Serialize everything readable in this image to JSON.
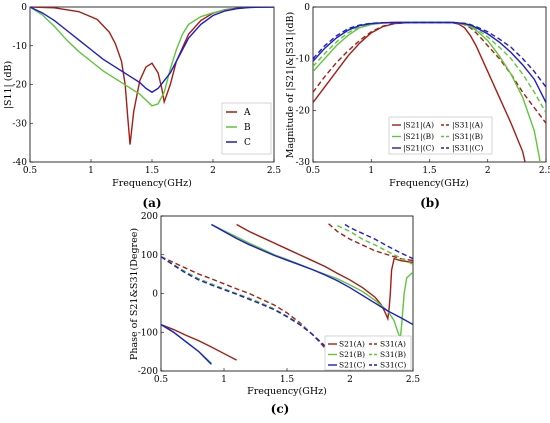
{
  "chart_data": [
    {
      "id": "a",
      "panel_label": "(a)",
      "type": "line",
      "xlabel": "Frequency(GHz)",
      "ylabel": "|S11| (dB)",
      "xlim": [
        0.5,
        2.5
      ],
      "ylim": [
        -40,
        0
      ],
      "xticks": [
        "0.5",
        "1",
        "1.5",
        "2",
        "2.5"
      ],
      "yticks": [
        "0",
        "-10",
        "-20",
        "-30",
        "-40"
      ],
      "grid": false,
      "legend": "center-right",
      "colors": {
        "A": "#a31e14",
        "B": "#5fc63a",
        "C": "#1c1ccf"
      },
      "series": [
        {
          "name": "A",
          "x": [
            0.5,
            0.7,
            0.9,
            1.05,
            1.15,
            1.2,
            1.25,
            1.28,
            1.3,
            1.32,
            1.35,
            1.4,
            1.45,
            1.5,
            1.55,
            1.58,
            1.6,
            1.65,
            1.7,
            1.8,
            1.9,
            2.0,
            2.1,
            2.2,
            2.3,
            2.5
          ],
          "y": [
            0,
            -0.2,
            -1.2,
            -3.2,
            -6.5,
            -9.5,
            -14,
            -20,
            -28,
            -35.5,
            -27,
            -19,
            -15.5,
            -14.5,
            -17,
            -21,
            -24.5,
            -20,
            -14,
            -7,
            -3.5,
            -1.6,
            -0.7,
            -0.3,
            -0.1,
            0
          ]
        },
        {
          "name": "B",
          "x": [
            0.5,
            0.6,
            0.7,
            0.8,
            0.9,
            1.0,
            1.1,
            1.2,
            1.3,
            1.4,
            1.45,
            1.5,
            1.55,
            1.6,
            1.65,
            1.7,
            1.75,
            1.8,
            1.9,
            2.0,
            2.1,
            2.2,
            2.3,
            2.5
          ],
          "y": [
            0,
            -2,
            -5,
            -8.5,
            -11.5,
            -14,
            -16.5,
            -18.5,
            -20.5,
            -22.5,
            -24,
            -25.5,
            -25,
            -22,
            -16,
            -11,
            -7,
            -4.5,
            -2.5,
            -1.5,
            -0.8,
            -0.4,
            -0.1,
            0
          ]
        },
        {
          "name": "C",
          "x": [
            0.5,
            0.6,
            0.7,
            0.8,
            0.9,
            1.0,
            1.1,
            1.2,
            1.3,
            1.4,
            1.45,
            1.5,
            1.55,
            1.6,
            1.65,
            1.7,
            1.8,
            1.9,
            2.0,
            2.1,
            2.2,
            2.3,
            2.5
          ],
          "y": [
            0,
            -1.5,
            -3.5,
            -6,
            -8.5,
            -11,
            -13.5,
            -15.5,
            -17.5,
            -19.5,
            -21,
            -22,
            -21,
            -19,
            -17,
            -14,
            -8,
            -4.5,
            -2.2,
            -1,
            -0.4,
            -0.1,
            0
          ]
        }
      ]
    },
    {
      "id": "b",
      "panel_label": "(b)",
      "type": "line",
      "xlabel": "Frequency(GHz)",
      "ylabel": "Magnitude of |S21|&|S31|(dB)",
      "xlim": [
        0.5,
        2.5
      ],
      "ylim": [
        -30,
        0
      ],
      "xticks": [
        "0.5",
        "1",
        "1.5",
        "2",
        "2.5"
      ],
      "yticks": [
        "0",
        "-10",
        "-20",
        "-30"
      ],
      "grid": false,
      "legend": "bottom-center",
      "colors": {
        "A": "#a31e14",
        "B": "#5fc63a",
        "C": "#1c1ccf"
      },
      "legend_entries": [
        "|S21|(A)",
        "|S31|(A)",
        "|S21|(B)",
        "|S31|(B)",
        "|S21|(C)",
        "|S31|(C)"
      ],
      "series": [
        {
          "name": "|S21|(A)",
          "dash": false,
          "color": "A",
          "x": [
            0.5,
            0.6,
            0.7,
            0.8,
            0.9,
            1.0,
            1.1,
            1.2,
            1.3,
            1.4,
            1.5,
            1.6,
            1.7,
            1.75,
            1.8,
            1.85,
            1.9,
            1.95,
            2.0,
            2.1,
            2.2,
            2.3,
            2.32
          ],
          "y": [
            -18.5,
            -15.5,
            -12.5,
            -9.5,
            -7,
            -5,
            -3.8,
            -3.2,
            -3.05,
            -3,
            -3,
            -3,
            -3.05,
            -3.3,
            -4,
            -5.5,
            -7.5,
            -10,
            -12.5,
            -17.5,
            -22.5,
            -28,
            -30
          ]
        },
        {
          "name": "|S31|(A)",
          "dash": true,
          "color": "A",
          "x": [
            0.5,
            0.6,
            0.7,
            0.8,
            0.9,
            1.0,
            1.1,
            1.2,
            1.3,
            1.4,
            1.5,
            1.6,
            1.7,
            1.75,
            1.8,
            1.85,
            1.9,
            1.95,
            2.0,
            2.1,
            2.2,
            2.3,
            2.4,
            2.5
          ],
          "y": [
            -16.5,
            -13.5,
            -10.8,
            -8.5,
            -6.5,
            -4.8,
            -3.7,
            -3.2,
            -3.05,
            -3,
            -3,
            -3,
            -3,
            -3.1,
            -3.4,
            -4,
            -5,
            -6.2,
            -7.5,
            -10,
            -13,
            -16.5,
            -19.5,
            -22.5
          ]
        },
        {
          "name": "|S21|(B)",
          "dash": false,
          "color": "B",
          "x": [
            0.5,
            0.6,
            0.7,
            0.8,
            0.9,
            1.0,
            1.1,
            1.2,
            1.3,
            1.4,
            1.5,
            1.6,
            1.7,
            1.8,
            1.85,
            1.9,
            2.0,
            2.1,
            2.2,
            2.3,
            2.4,
            2.45
          ],
          "y": [
            -12.5,
            -10,
            -7.5,
            -5.5,
            -4,
            -3.4,
            -3.1,
            -3,
            -3,
            -3,
            -3,
            -3,
            -3,
            -3.3,
            -3.8,
            -4.5,
            -6.5,
            -9.5,
            -13,
            -17.5,
            -24,
            -30
          ]
        },
        {
          "name": "|S31|(B)",
          "dash": true,
          "color": "B",
          "x": [
            0.5,
            0.6,
            0.7,
            0.8,
            0.9,
            1.0,
            1.1,
            1.2,
            1.3,
            1.4,
            1.5,
            1.6,
            1.7,
            1.8,
            1.85,
            1.9,
            2.0,
            2.1,
            2.2,
            2.3,
            2.4,
            2.5
          ],
          "y": [
            -11.5,
            -9,
            -6.8,
            -5,
            -3.8,
            -3.3,
            -3.1,
            -3,
            -3,
            -3,
            -3,
            -3,
            -3,
            -3.2,
            -3.6,
            -4.2,
            -5.8,
            -7.8,
            -10,
            -13,
            -16.5,
            -20.5
          ]
        },
        {
          "name": "|S21|(C)",
          "dash": false,
          "color": "C",
          "x": [
            0.5,
            0.6,
            0.7,
            0.8,
            0.9,
            1.0,
            1.1,
            1.2,
            1.3,
            1.4,
            1.5,
            1.6,
            1.7,
            1.8,
            1.85,
            1.9,
            2.0,
            2.1,
            2.2,
            2.3,
            2.4,
            2.5
          ],
          "y": [
            -10.5,
            -8,
            -6,
            -4.5,
            -3.6,
            -3.2,
            -3.05,
            -3,
            -3,
            -3,
            -3,
            -3,
            -3,
            -3.2,
            -3.5,
            -4,
            -5.2,
            -6.8,
            -8.8,
            -11.2,
            -14,
            -18.5
          ]
        },
        {
          "name": "|S31|(C)",
          "dash": true,
          "color": "C",
          "x": [
            0.5,
            0.6,
            0.7,
            0.8,
            0.9,
            1.0,
            1.1,
            1.2,
            1.3,
            1.4,
            1.5,
            1.6,
            1.7,
            1.8,
            1.85,
            1.9,
            2.0,
            2.1,
            2.2,
            2.3,
            2.4,
            2.5
          ],
          "y": [
            -10,
            -7.5,
            -5.6,
            -4.2,
            -3.5,
            -3.15,
            -3.05,
            -3,
            -3,
            -3,
            -3,
            -3,
            -3,
            -3.15,
            -3.4,
            -3.8,
            -4.8,
            -6.2,
            -7.8,
            -10,
            -12.5,
            -15.5
          ]
        }
      ]
    },
    {
      "id": "c",
      "panel_label": "(c)",
      "type": "line",
      "xlabel": "Frequency(GHz)",
      "ylabel": "Phase of S21&S31(Degree)",
      "xlim": [
        0.5,
        2.5
      ],
      "ylim": [
        -200,
        200
      ],
      "xticks": [
        "0.5",
        "1",
        "1.5",
        "2",
        "2.5"
      ],
      "yticks": [
        "200",
        "100",
        "0",
        "-100",
        "-200"
      ],
      "grid": false,
      "legend": "bottom-right",
      "colors": {
        "A": "#a31e14",
        "B": "#5fc63a",
        "C": "#1c1ccf"
      },
      "legend_entries": [
        "S21(A)",
        "S31(A)",
        "S21(B)",
        "S31(B)",
        "S21(C)",
        "S31(C)"
      ],
      "series": [
        {
          "name": "S21(A)",
          "dash": false,
          "color": "A",
          "x": [
            0.5,
            0.6,
            0.7,
            0.8,
            0.9,
            1.0,
            1.1,
            1.1001,
            1.2,
            1.3,
            1.4,
            1.5,
            1.6,
            1.7,
            1.8,
            1.9,
            2.0,
            2.1,
            2.2,
            2.25,
            2.28,
            2.3,
            2.31,
            2.32,
            2.33,
            2.35,
            2.4,
            2.5
          ],
          "y": [
            -80,
            -93,
            -108,
            -122,
            -138,
            -155,
            -172,
            178,
            160,
            145,
            130,
            115,
            100,
            85,
            70,
            52,
            35,
            15,
            -10,
            -30,
            -50,
            -65,
            -40,
            0,
            60,
            90,
            85,
            80
          ]
        },
        {
          "name": "S31(A)",
          "dash": true,
          "color": "A",
          "x": [
            0.5,
            0.6,
            0.7,
            0.8,
            0.9,
            1.0,
            1.1,
            1.2,
            1.3,
            1.4,
            1.5,
            1.6,
            1.7,
            1.8,
            1.83,
            1.8301,
            1.9,
            2.0,
            2.1,
            2.2,
            2.3,
            2.4,
            2.5
          ],
          "y": [
            95,
            80,
            65,
            50,
            38,
            25,
            12,
            0,
            -15,
            -30,
            -50,
            -75,
            -105,
            -140,
            -182,
            180,
            160,
            140,
            125,
            110,
            100,
            90,
            85
          ]
        },
        {
          "name": "S21(B)",
          "dash": false,
          "color": "B",
          "x": [
            0.5,
            0.6,
            0.7,
            0.8,
            0.9,
            0.9001,
            1.0,
            1.1,
            1.2,
            1.3,
            1.4,
            1.5,
            1.6,
            1.7,
            1.8,
            1.9,
            2.0,
            2.1,
            2.2,
            2.3,
            2.35,
            2.38,
            2.4,
            2.41,
            2.43,
            2.45,
            2.5
          ],
          "y": [
            -80,
            -100,
            -125,
            -150,
            -180,
            178,
            162,
            146,
            130,
            115,
            100,
            88,
            75,
            62,
            50,
            38,
            22,
            5,
            -18,
            -45,
            -70,
            -100,
            -115,
            -80,
            0,
            40,
            55
          ]
        },
        {
          "name": "S31(B)",
          "dash": true,
          "color": "B",
          "x": [
            0.5,
            0.6,
            0.7,
            0.8,
            0.9,
            1.0,
            1.1,
            1.2,
            1.3,
            1.4,
            1.5,
            1.6,
            1.7,
            1.8,
            1.9,
            1.9001,
            2.0,
            2.1,
            2.2,
            2.3,
            2.4,
            2.5
          ],
          "y": [
            95,
            75,
            55,
            38,
            25,
            12,
            0,
            -12,
            -25,
            -40,
            -58,
            -78,
            -105,
            -135,
            -182,
            175,
            160,
            140,
            125,
            108,
            92,
            75
          ]
        },
        {
          "name": "S21(C)",
          "dash": false,
          "color": "C",
          "x": [
            0.5,
            0.6,
            0.7,
            0.8,
            0.9,
            0.9001,
            1.0,
            1.1,
            1.2,
            1.3,
            1.4,
            1.5,
            1.6,
            1.7,
            1.8,
            1.9,
            2.0,
            2.1,
            2.2,
            2.3,
            2.4,
            2.5
          ],
          "y": [
            -80,
            -100,
            -125,
            -150,
            -183,
            178,
            160,
            142,
            126,
            112,
            98,
            86,
            74,
            62,
            48,
            33,
            15,
            -5,
            -25,
            -45,
            -62,
            -80
          ]
        },
        {
          "name": "S31(C)",
          "dash": true,
          "color": "C",
          "x": [
            0.5,
            0.6,
            0.7,
            0.8,
            0.9,
            1.0,
            1.1,
            1.2,
            1.3,
            1.4,
            1.5,
            1.6,
            1.7,
            1.8,
            1.9,
            1.96,
            1.9601,
            2.0,
            2.1,
            2.2,
            2.3,
            2.4,
            2.5
          ],
          "y": [
            95,
            73,
            52,
            35,
            22,
            10,
            -2,
            -15,
            -28,
            -42,
            -60,
            -80,
            -105,
            -135,
            -165,
            -182,
            178,
            170,
            155,
            140,
            122,
            105,
            90
          ]
        }
      ]
    }
  ]
}
